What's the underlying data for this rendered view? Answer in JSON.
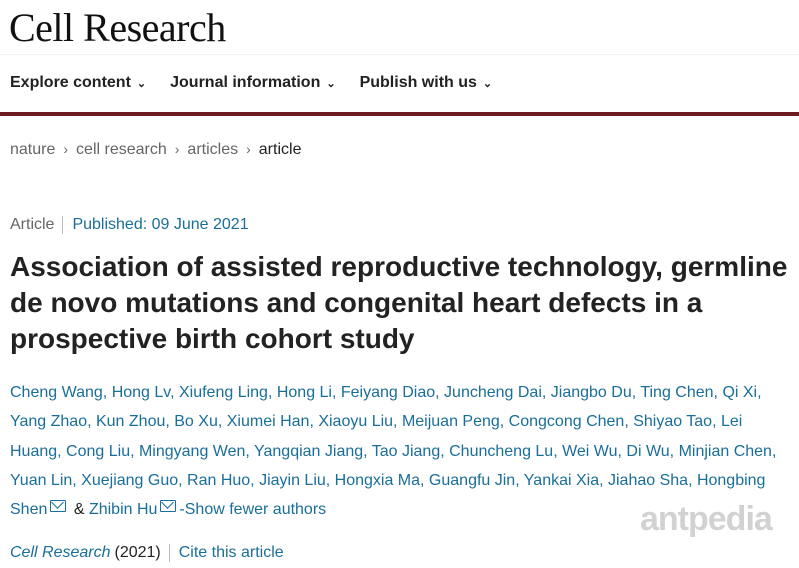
{
  "header": {
    "logo": "Cell Research"
  },
  "nav": [
    {
      "label": "Explore content"
    },
    {
      "label": "Journal information"
    },
    {
      "label": "Publish with us"
    }
  ],
  "nav_chevron": "⌄",
  "breadcrumb": [
    "nature",
    "cell research",
    "articles",
    "article"
  ],
  "article": {
    "type": "Article",
    "published": "Published: 09 June 2021",
    "title": "Association of assisted reproductive technology, germline de novo mutations and congenital heart defects in a prospective birth cohort study",
    "author_lines": [
      "Cheng Wang, Hong Lv, Xiufeng Ling, Hong Li, Feiyang Diao, Juncheng Dai, Jiangbo Du, Ting Chen, Qi Xi,",
      "Yang Zhao, Kun Zhou, Bo Xu, Xiumei Han, Xiaoyu Liu, Meijuan Peng, Congcong Chen, Shiyao Tao, Lei",
      "Huang, Cong Liu, Mingyang Wen, Yangqian Jiang, Tao Jiang, Chuncheng Lu, Wei Wu, Di Wu, Minjian Chen,",
      "Yuan Lin, Xuejiang Guo, Ran Huo, Jiayin Liu, Hongxia Ma, Guangfu Jin, Yankai Xia, Jiahao Sha, Hongbing"
    ],
    "last_author_a": "Shen",
    "amp": " & ",
    "last_author_b": "Zhibin Hu",
    "show_fewer": "-Show fewer authors",
    "journal": "Cell Research",
    "year": "(2021)",
    "cite": "Cite this article"
  },
  "watermark": "antpedia",
  "colors": {
    "link": "#1a6e9a",
    "accent_bar": "#6e1b24"
  }
}
